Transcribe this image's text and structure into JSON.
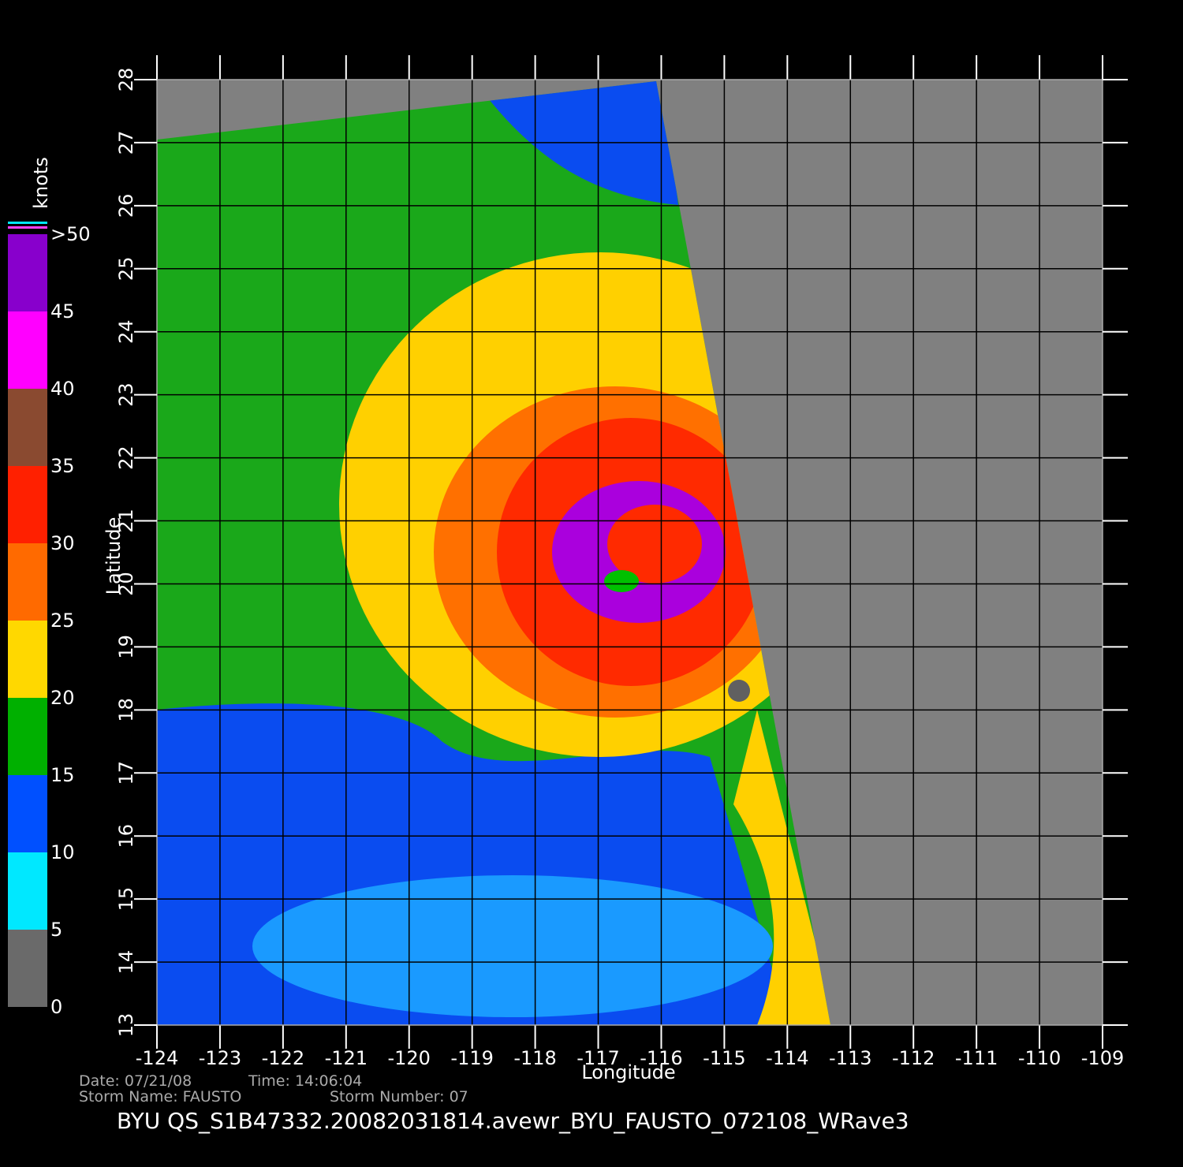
{
  "title": "BYU  QS_S1B47332.20082031814.avewr_BYU_FAUSTO_072108_WRave3",
  "map": {
    "xlabel": "Longitude",
    "ylabel": "Latitude",
    "xlim": [
      -124,
      -109
    ],
    "ylim": [
      13,
      28
    ],
    "xticks": [
      -124,
      -123,
      -122,
      -121,
      -120,
      -119,
      -118,
      -117,
      -116,
      -115,
      -114,
      -113,
      -112,
      -111,
      -110,
      -109
    ],
    "yticks": [
      13,
      14,
      15,
      16,
      17,
      18,
      19,
      20,
      21,
      22,
      23,
      24,
      25,
      26,
      27,
      28
    ]
  },
  "colorbar": {
    "title": "knots",
    "ticks": [
      0,
      5,
      10,
      15,
      20,
      25,
      30,
      35,
      40,
      45,
      {
        "value": 50,
        "label": ">50"
      }
    ],
    "colors": [
      "#6a6a6a",
      "#00e8ff",
      "#0050ff",
      "#00b000",
      "#ffd800",
      "#ff6a00",
      "#ff2000",
      "#8a4a30",
      "#ff00ff",
      "#8800cc"
    ]
  },
  "footer": {
    "date": "Date: 07/21/08",
    "time": "Time: 14:06:04",
    "storm_name": "Storm  Name: FAUSTO",
    "storm_number": "Storm  Number: 07"
  }
}
